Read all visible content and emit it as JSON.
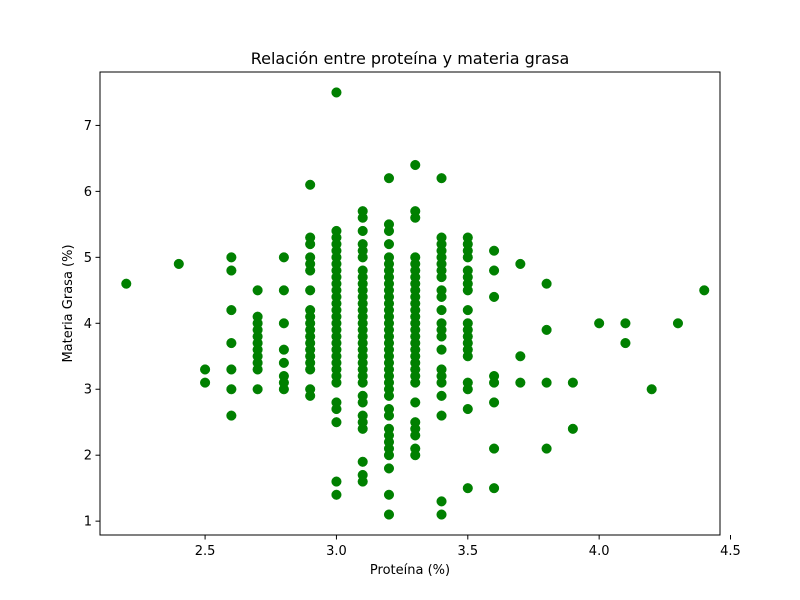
{
  "chart_data": {
    "type": "scatter",
    "title": "Relación entre proteína y materia grasa",
    "xlabel": "Proteína (%)",
    "ylabel": "Materia Grasa (%)",
    "xlim": [
      2.1,
      4.46
    ],
    "ylim": [
      0.79,
      7.81
    ],
    "xticks": [
      2.5,
      3.0,
      3.5,
      4.0,
      4.5
    ],
    "xtick_labels": [
      "2.5",
      "3.0",
      "3.5",
      "4.0",
      "4.5"
    ],
    "yticks": [
      1,
      2,
      3,
      4,
      5,
      6,
      7
    ],
    "ytick_labels": [
      "1",
      "2",
      "3",
      "4",
      "5",
      "6",
      "7"
    ],
    "grid": false,
    "marker_color": "#008000",
    "series": [
      {
        "points": [
          [
            2.2,
            4.6
          ],
          [
            2.4,
            4.9
          ],
          [
            2.5,
            3.3
          ],
          [
            2.5,
            3.1
          ],
          [
            2.6,
            5.0
          ],
          [
            2.6,
            4.8
          ],
          [
            2.6,
            4.2
          ],
          [
            2.6,
            3.7
          ],
          [
            2.6,
            3.3
          ],
          [
            2.6,
            3.0
          ],
          [
            2.6,
            2.6
          ],
          [
            2.7,
            4.5
          ],
          [
            2.7,
            4.1
          ],
          [
            2.7,
            4.0
          ],
          [
            2.7,
            3.9
          ],
          [
            2.7,
            3.8
          ],
          [
            2.7,
            3.7
          ],
          [
            2.7,
            3.6
          ],
          [
            2.7,
            3.5
          ],
          [
            2.7,
            3.4
          ],
          [
            2.7,
            3.3
          ],
          [
            2.7,
            3.0
          ],
          [
            2.8,
            5.0
          ],
          [
            2.8,
            4.5
          ],
          [
            2.8,
            4.0
          ],
          [
            2.8,
            3.6
          ],
          [
            2.8,
            3.4
          ],
          [
            2.8,
            3.2
          ],
          [
            2.8,
            3.1
          ],
          [
            2.8,
            3.0
          ],
          [
            2.9,
            6.1
          ],
          [
            2.9,
            5.3
          ],
          [
            2.9,
            5.2
          ],
          [
            2.9,
            5.0
          ],
          [
            2.9,
            4.9
          ],
          [
            2.9,
            4.8
          ],
          [
            2.9,
            4.5
          ],
          [
            2.9,
            4.2
          ],
          [
            2.9,
            4.1
          ],
          [
            2.9,
            4.0
          ],
          [
            2.9,
            3.9
          ],
          [
            2.9,
            3.8
          ],
          [
            2.9,
            3.7
          ],
          [
            2.9,
            3.6
          ],
          [
            2.9,
            3.5
          ],
          [
            2.9,
            3.4
          ],
          [
            2.9,
            3.3
          ],
          [
            2.9,
            3.0
          ],
          [
            2.9,
            2.9
          ],
          [
            3.0,
            7.5
          ],
          [
            3.0,
            5.4
          ],
          [
            3.0,
            5.3
          ],
          [
            3.0,
            5.2
          ],
          [
            3.0,
            5.1
          ],
          [
            3.0,
            5.0
          ],
          [
            3.0,
            4.9
          ],
          [
            3.0,
            4.8
          ],
          [
            3.0,
            4.7
          ],
          [
            3.0,
            4.6
          ],
          [
            3.0,
            4.5
          ],
          [
            3.0,
            4.4
          ],
          [
            3.0,
            4.3
          ],
          [
            3.0,
            4.2
          ],
          [
            3.0,
            4.1
          ],
          [
            3.0,
            4.0
          ],
          [
            3.0,
            3.9
          ],
          [
            3.0,
            3.8
          ],
          [
            3.0,
            3.7
          ],
          [
            3.0,
            3.6
          ],
          [
            3.0,
            3.5
          ],
          [
            3.0,
            3.4
          ],
          [
            3.0,
            3.3
          ],
          [
            3.0,
            3.2
          ],
          [
            3.0,
            3.1
          ],
          [
            3.0,
            2.8
          ],
          [
            3.0,
            2.7
          ],
          [
            3.0,
            2.5
          ],
          [
            3.0,
            1.6
          ],
          [
            3.0,
            1.4
          ],
          [
            3.1,
            5.7
          ],
          [
            3.1,
            5.6
          ],
          [
            3.1,
            5.4
          ],
          [
            3.1,
            5.2
          ],
          [
            3.1,
            5.1
          ],
          [
            3.1,
            5.0
          ],
          [
            3.1,
            4.8
          ],
          [
            3.1,
            4.7
          ],
          [
            3.1,
            4.6
          ],
          [
            3.1,
            4.5
          ],
          [
            3.1,
            4.4
          ],
          [
            3.1,
            4.3
          ],
          [
            3.1,
            4.2
          ],
          [
            3.1,
            4.1
          ],
          [
            3.1,
            4.0
          ],
          [
            3.1,
            3.9
          ],
          [
            3.1,
            3.8
          ],
          [
            3.1,
            3.7
          ],
          [
            3.1,
            3.6
          ],
          [
            3.1,
            3.5
          ],
          [
            3.1,
            3.4
          ],
          [
            3.1,
            3.3
          ],
          [
            3.1,
            3.2
          ],
          [
            3.1,
            3.1
          ],
          [
            3.1,
            2.9
          ],
          [
            3.1,
            2.8
          ],
          [
            3.1,
            2.6
          ],
          [
            3.1,
            2.5
          ],
          [
            3.1,
            2.4
          ],
          [
            3.1,
            1.9
          ],
          [
            3.1,
            1.7
          ],
          [
            3.1,
            1.6
          ],
          [
            3.2,
            6.2
          ],
          [
            3.2,
            5.5
          ],
          [
            3.2,
            5.4
          ],
          [
            3.2,
            5.2
          ],
          [
            3.2,
            5.0
          ],
          [
            3.2,
            4.9
          ],
          [
            3.2,
            4.8
          ],
          [
            3.2,
            4.7
          ],
          [
            3.2,
            4.6
          ],
          [
            3.2,
            4.5
          ],
          [
            3.2,
            4.4
          ],
          [
            3.2,
            4.3
          ],
          [
            3.2,
            4.2
          ],
          [
            3.2,
            4.1
          ],
          [
            3.2,
            4.0
          ],
          [
            3.2,
            3.9
          ],
          [
            3.2,
            3.8
          ],
          [
            3.2,
            3.7
          ],
          [
            3.2,
            3.6
          ],
          [
            3.2,
            3.5
          ],
          [
            3.2,
            3.4
          ],
          [
            3.2,
            3.3
          ],
          [
            3.2,
            3.2
          ],
          [
            3.2,
            3.1
          ],
          [
            3.2,
            3.0
          ],
          [
            3.2,
            2.9
          ],
          [
            3.2,
            2.7
          ],
          [
            3.2,
            2.6
          ],
          [
            3.2,
            2.4
          ],
          [
            3.2,
            2.3
          ],
          [
            3.2,
            2.2
          ],
          [
            3.2,
            2.1
          ],
          [
            3.2,
            2.0
          ],
          [
            3.2,
            1.8
          ],
          [
            3.2,
            1.4
          ],
          [
            3.2,
            1.1
          ],
          [
            3.3,
            6.4
          ],
          [
            3.3,
            5.7
          ],
          [
            3.3,
            5.6
          ],
          [
            3.3,
            5.0
          ],
          [
            3.3,
            4.9
          ],
          [
            3.3,
            4.8
          ],
          [
            3.3,
            4.7
          ],
          [
            3.3,
            4.6
          ],
          [
            3.3,
            4.5
          ],
          [
            3.3,
            4.4
          ],
          [
            3.3,
            4.3
          ],
          [
            3.3,
            4.2
          ],
          [
            3.3,
            4.1
          ],
          [
            3.3,
            4.0
          ],
          [
            3.3,
            3.9
          ],
          [
            3.3,
            3.8
          ],
          [
            3.3,
            3.7
          ],
          [
            3.3,
            3.6
          ],
          [
            3.3,
            3.5
          ],
          [
            3.3,
            3.4
          ],
          [
            3.3,
            3.3
          ],
          [
            3.3,
            3.2
          ],
          [
            3.3,
            3.1
          ],
          [
            3.3,
            2.8
          ],
          [
            3.3,
            2.5
          ],
          [
            3.3,
            2.4
          ],
          [
            3.3,
            2.3
          ],
          [
            3.3,
            2.1
          ],
          [
            3.3,
            2.0
          ],
          [
            3.4,
            6.2
          ],
          [
            3.4,
            5.3
          ],
          [
            3.4,
            5.2
          ],
          [
            3.4,
            5.1
          ],
          [
            3.4,
            5.0
          ],
          [
            3.4,
            4.9
          ],
          [
            3.4,
            4.8
          ],
          [
            3.4,
            4.7
          ],
          [
            3.4,
            4.5
          ],
          [
            3.4,
            4.4
          ],
          [
            3.4,
            4.2
          ],
          [
            3.4,
            4.0
          ],
          [
            3.4,
            3.9
          ],
          [
            3.4,
            3.8
          ],
          [
            3.4,
            3.6
          ],
          [
            3.4,
            3.3
          ],
          [
            3.4,
            3.2
          ],
          [
            3.4,
            3.1
          ],
          [
            3.4,
            2.9
          ],
          [
            3.4,
            2.6
          ],
          [
            3.4,
            1.3
          ],
          [
            3.4,
            1.1
          ],
          [
            3.5,
            5.3
          ],
          [
            3.5,
            5.2
          ],
          [
            3.5,
            5.1
          ],
          [
            3.5,
            5.0
          ],
          [
            3.5,
            4.8
          ],
          [
            3.5,
            4.7
          ],
          [
            3.5,
            4.6
          ],
          [
            3.5,
            4.5
          ],
          [
            3.5,
            4.2
          ],
          [
            3.5,
            4.0
          ],
          [
            3.5,
            3.9
          ],
          [
            3.5,
            3.8
          ],
          [
            3.5,
            3.7
          ],
          [
            3.5,
            3.6
          ],
          [
            3.5,
            3.5
          ],
          [
            3.5,
            3.1
          ],
          [
            3.5,
            3.0
          ],
          [
            3.5,
            2.7
          ],
          [
            3.5,
            1.5
          ],
          [
            3.6,
            5.1
          ],
          [
            3.6,
            4.8
          ],
          [
            3.6,
            4.4
          ],
          [
            3.6,
            3.2
          ],
          [
            3.6,
            3.1
          ],
          [
            3.6,
            2.8
          ],
          [
            3.6,
            2.1
          ],
          [
            3.6,
            1.5
          ],
          [
            3.7,
            4.9
          ],
          [
            3.7,
            3.5
          ],
          [
            3.7,
            3.1
          ],
          [
            3.8,
            4.6
          ],
          [
            3.8,
            3.9
          ],
          [
            3.8,
            3.1
          ],
          [
            3.8,
            2.1
          ],
          [
            3.9,
            3.1
          ],
          [
            3.9,
            2.4
          ],
          [
            4.0,
            4.0
          ],
          [
            4.1,
            4.0
          ],
          [
            4.1,
            3.7
          ],
          [
            4.2,
            3.0
          ],
          [
            4.3,
            4.0
          ],
          [
            4.4,
            4.5
          ]
        ]
      }
    ]
  }
}
